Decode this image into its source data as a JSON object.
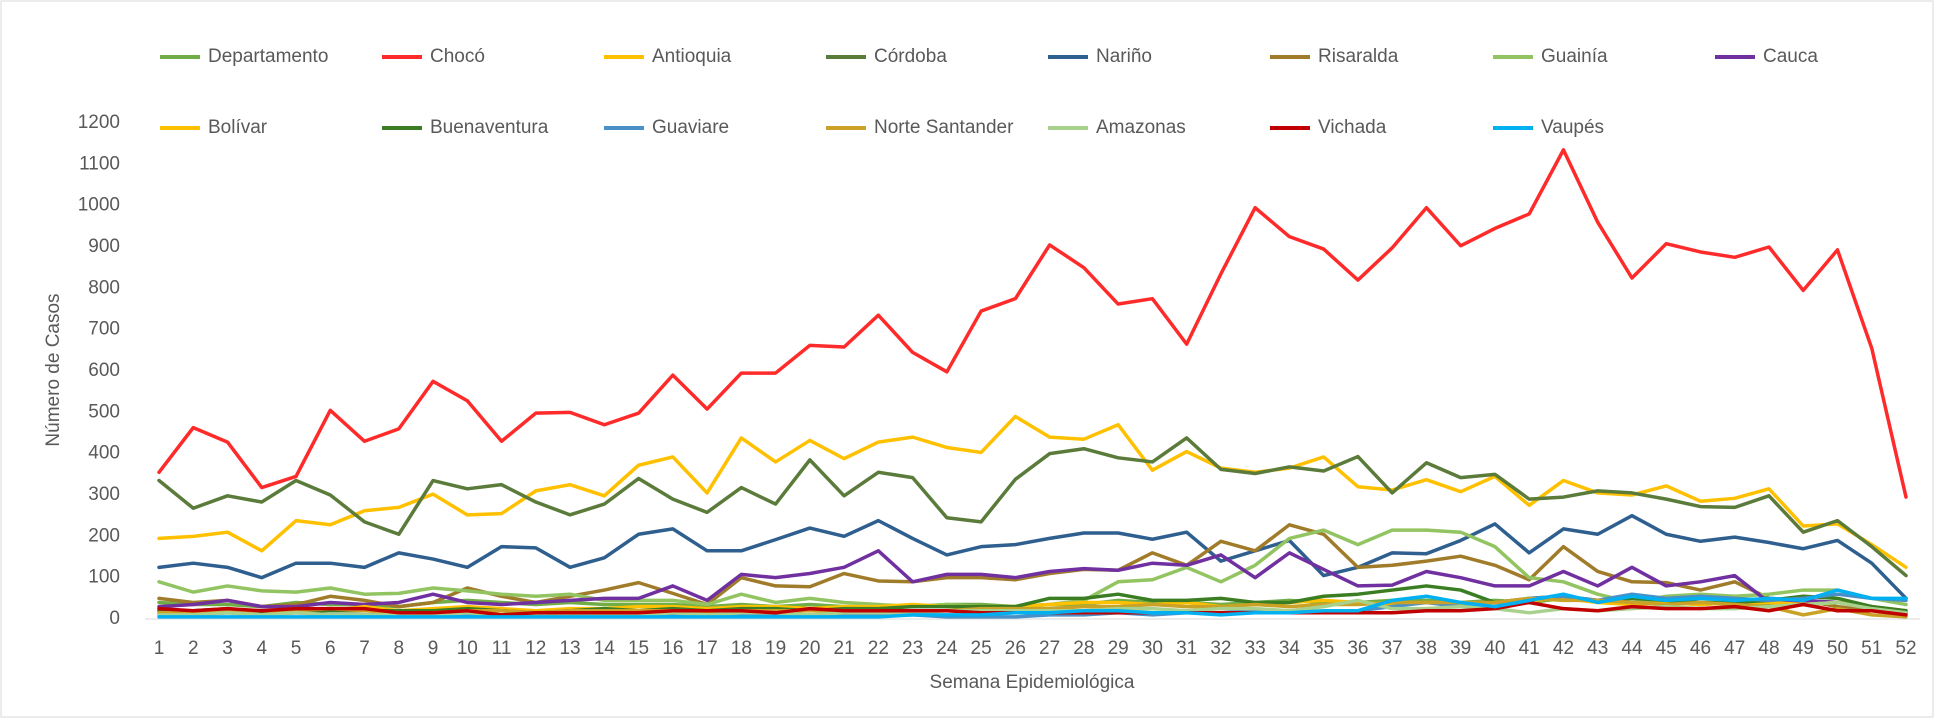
{
  "chart_data": {
    "type": "line",
    "x_label": "Semana Epidemiológica",
    "y_label": "Número de Casos",
    "categories": [
      "1",
      "2",
      "3",
      "4",
      "5",
      "6",
      "7",
      "8",
      "9",
      "10",
      "11",
      "12",
      "13",
      "14",
      "15",
      "16",
      "17",
      "18",
      "19",
      "20",
      "21",
      "22",
      "23",
      "24",
      "25",
      "26",
      "27",
      "28",
      "29",
      "30",
      "31",
      "32",
      "33",
      "34",
      "35",
      "36",
      "37",
      "38",
      "39",
      "40",
      "41",
      "42",
      "43",
      "44",
      "45",
      "46",
      "47",
      "48",
      "49",
      "50",
      "51",
      "52"
    ],
    "ylim": [
      0,
      1200
    ],
    "yticks": [
      0,
      100,
      200,
      300,
      400,
      500,
      600,
      700,
      800,
      900,
      1000,
      1100,
      1200
    ],
    "legend": "top",
    "series": [
      {
        "name": "Departamento",
        "color": "#70ad47",
        "values": [
          40,
          35,
          35,
          30,
          40,
          35,
          35,
          30,
          40,
          45,
          40,
          35,
          40,
          35,
          35,
          35,
          30,
          35,
          30,
          35,
          30,
          30,
          30,
          35,
          35,
          30,
          35,
          35,
          45,
          40,
          40,
          35,
          40,
          45,
          40,
          40,
          45,
          45,
          40,
          45,
          40,
          50,
          45,
          40,
          40,
          35,
          40,
          35,
          45,
          40,
          30,
          20
        ]
      },
      {
        "name": "Chocó",
        "color": "#ff2a2a",
        "values": [
          355,
          463,
          428,
          318,
          345,
          505,
          430,
          460,
          575,
          528,
          430,
          498,
          500,
          470,
          498,
          590,
          508,
          595,
          595,
          662,
          658,
          735,
          645,
          598,
          745,
          775,
          905,
          850,
          762,
          775,
          665,
          835,
          995,
          925,
          895,
          820,
          898,
          995,
          903,
          945,
          980,
          1135,
          960,
          825,
          908,
          888,
          875,
          900,
          795,
          893,
          655,
          295
        ]
      },
      {
        "name": "Antioquia",
        "color": "#ffc000",
        "values": [
          195,
          200,
          210,
          165,
          238,
          228,
          262,
          270,
          302,
          252,
          255,
          310,
          325,
          298,
          372,
          392,
          305,
          438,
          380,
          432,
          388,
          428,
          440,
          415,
          403,
          490,
          440,
          435,
          470,
          360,
          405,
          365,
          355,
          365,
          392,
          320,
          312,
          337,
          308,
          345,
          275,
          335,
          305,
          300,
          322,
          285,
          292,
          315,
          225,
          230,
          180,
          125
        ]
      },
      {
        "name": "Córdoba",
        "color": "#5b7b3b",
        "values": [
          335,
          268,
          298,
          283,
          335,
          300,
          235,
          205,
          335,
          315,
          325,
          283,
          252,
          278,
          340,
          290,
          258,
          318,
          278,
          385,
          298,
          355,
          342,
          245,
          235,
          338,
          400,
          412,
          390,
          380,
          438,
          362,
          352,
          368,
          358,
          393,
          305,
          378,
          342,
          350,
          290,
          295,
          310,
          305,
          290,
          272,
          270,
          298,
          210,
          238,
          175,
          105
        ]
      },
      {
        "name": "Nariño",
        "color": "#2e5f8f",
        "values": [
          125,
          135,
          125,
          100,
          135,
          135,
          125,
          160,
          145,
          125,
          175,
          172,
          125,
          148,
          205,
          218,
          165,
          165,
          192,
          220,
          200,
          238,
          195,
          155,
          175,
          180,
          195,
          208,
          208,
          193,
          210,
          140,
          165,
          190,
          105,
          125,
          160,
          158,
          190,
          230,
          160,
          218,
          205,
          250,
          205,
          188,
          198,
          185,
          170,
          190,
          135,
          50
        ]
      },
      {
        "name": "Risaralda",
        "color": "#a07c2a",
        "values": [
          50,
          40,
          45,
          30,
          35,
          55,
          45,
          30,
          40,
          75,
          55,
          40,
          55,
          70,
          88,
          62,
          35,
          100,
          80,
          78,
          110,
          92,
          90,
          100,
          100,
          95,
          110,
          120,
          118,
          160,
          130,
          188,
          165,
          228,
          205,
          125,
          130,
          140,
          152,
          130,
          95,
          175,
          115,
          90,
          88,
          70,
          90,
          50,
          45,
          30,
          20,
          15
        ]
      },
      {
        "name": "Guainía",
        "color": "#92c461",
        "values": [
          90,
          65,
          80,
          68,
          65,
          75,
          60,
          62,
          75,
          68,
          60,
          55,
          60,
          45,
          45,
          45,
          35,
          60,
          40,
          50,
          40,
          35,
          30,
          35,
          30,
          30,
          35,
          45,
          90,
          95,
          125,
          90,
          130,
          195,
          215,
          180,
          215,
          215,
          210,
          175,
          100,
          90,
          60,
          40,
          55,
          60,
          55,
          60,
          70,
          70,
          50,
          35
        ]
      },
      {
        "name": "Cauca",
        "color": "#7030a0",
        "values": [
          30,
          35,
          45,
          30,
          30,
          40,
          35,
          40,
          60,
          40,
          35,
          40,
          45,
          50,
          50,
          80,
          45,
          108,
          100,
          110,
          125,
          165,
          90,
          108,
          108,
          100,
          115,
          122,
          118,
          135,
          130,
          155,
          100,
          160,
          120,
          80,
          82,
          115,
          100,
          80,
          80,
          115,
          80,
          125,
          80,
          90,
          105,
          40,
          45,
          40,
          30,
          15
        ]
      },
      {
        "name": "Bolívar",
        "color": "#ffc000",
        "values": [
          20,
          15,
          20,
          15,
          25,
          20,
          30,
          20,
          25,
          30,
          25,
          20,
          25,
          25,
          30,
          30,
          25,
          30,
          30,
          25,
          30,
          30,
          35,
          30,
          30,
          30,
          35,
          40,
          40,
          35,
          40,
          30,
          35,
          40,
          45,
          40,
          35,
          40,
          35,
          40,
          45,
          50,
          40,
          35,
          40,
          35,
          40,
          40,
          35,
          40,
          30,
          20
        ]
      },
      {
        "name": "Buenaventura",
        "color": "#3b7d23",
        "values": [
          20,
          20,
          25,
          15,
          20,
          20,
          20,
          20,
          20,
          25,
          20,
          15,
          20,
          25,
          20,
          25,
          20,
          25,
          25,
          20,
          25,
          25,
          30,
          30,
          30,
          30,
          50,
          50,
          60,
          45,
          45,
          50,
          40,
          40,
          55,
          60,
          70,
          80,
          70,
          40,
          50,
          55,
          45,
          50,
          45,
          40,
          40,
          45,
          55,
          50,
          30,
          20
        ]
      },
      {
        "name": "Guaviare",
        "color": "#4a90c8",
        "values": [
          10,
          10,
          15,
          10,
          15,
          10,
          10,
          10,
          10,
          10,
          10,
          10,
          10,
          10,
          10,
          10,
          10,
          10,
          10,
          10,
          10,
          10,
          10,
          5,
          5,
          5,
          10,
          10,
          15,
          10,
          15,
          15,
          20,
          20,
          15,
          20,
          30,
          40,
          30,
          30,
          50,
          55,
          45,
          60,
          50,
          55,
          50,
          45,
          50,
          60,
          50,
          45
        ]
      },
      {
        "name": "Norte Santander",
        "color": "#c9a227",
        "values": [
          15,
          15,
          20,
          20,
          20,
          25,
          20,
          15,
          15,
          20,
          20,
          15,
          20,
          20,
          20,
          20,
          15,
          20,
          20,
          20,
          20,
          15,
          20,
          20,
          25,
          25,
          25,
          30,
          30,
          35,
          30,
          30,
          35,
          30,
          35,
          35,
          40,
          40,
          40,
          40,
          50,
          45,
          45,
          40,
          35,
          40,
          35,
          30,
          10,
          25,
          10,
          5
        ]
      },
      {
        "name": "Amazonas",
        "color": "#a9d18e",
        "values": [
          10,
          10,
          15,
          10,
          15,
          10,
          10,
          10,
          10,
          15,
          10,
          10,
          10,
          10,
          10,
          15,
          10,
          15,
          15,
          10,
          15,
          15,
          15,
          20,
          20,
          20,
          20,
          20,
          25,
          25,
          20,
          25,
          25,
          20,
          30,
          45,
          25,
          25,
          30,
          25,
          15,
          25,
          20,
          25,
          30,
          25,
          25,
          30,
          35,
          40,
          25,
          15
        ]
      },
      {
        "name": "Vichada",
        "color": "#c00000",
        "values": [
          25,
          20,
          25,
          20,
          25,
          25,
          25,
          15,
          15,
          20,
          10,
          15,
          15,
          15,
          15,
          20,
          20,
          20,
          15,
          25,
          20,
          20,
          20,
          20,
          15,
          15,
          15,
          15,
          15,
          15,
          15,
          15,
          15,
          15,
          15,
          15,
          15,
          20,
          20,
          25,
          40,
          25,
          20,
          30,
          25,
          25,
          30,
          20,
          35,
          20,
          20,
          10
        ]
      },
      {
        "name": "Vaupés",
        "color": "#00b0f0",
        "values": [
          5,
          5,
          5,
          5,
          5,
          5,
          5,
          5,
          5,
          5,
          5,
          5,
          5,
          5,
          5,
          5,
          5,
          5,
          5,
          5,
          5,
          5,
          10,
          10,
          10,
          15,
          15,
          20,
          20,
          15,
          15,
          10,
          15,
          15,
          20,
          20,
          45,
          55,
          40,
          30,
          45,
          60,
          40,
          55,
          45,
          50,
          45,
          50,
          45,
          70,
          50,
          50
        ]
      }
    ]
  }
}
